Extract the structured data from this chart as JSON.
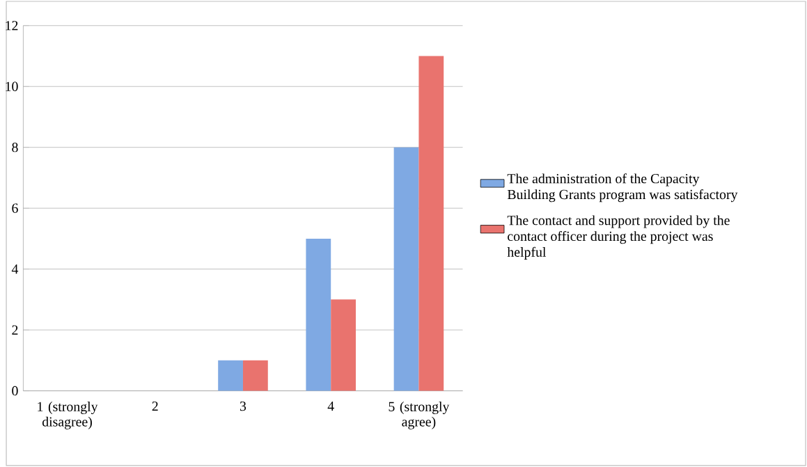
{
  "chart_data": {
    "type": "bar",
    "categories": [
      "1 (strongly disagree)",
      "2",
      "3",
      "4",
      "5 (strongly agree)"
    ],
    "series": [
      {
        "name": "The administration of the Capacity Building Grants program was satisfactory",
        "color": "#7fa9e3",
        "values": [
          0,
          0,
          1,
          5,
          8
        ]
      },
      {
        "name": "The contact and support provided by the contact officer during the project was helpful",
        "color": "#e9736e",
        "values": [
          0,
          0,
          1,
          3,
          11
        ]
      }
    ],
    "ylim": [
      0,
      12
    ],
    "yticks": [
      0,
      2,
      4,
      6,
      8,
      10,
      12
    ],
    "grid": "y",
    "legend": "right"
  }
}
